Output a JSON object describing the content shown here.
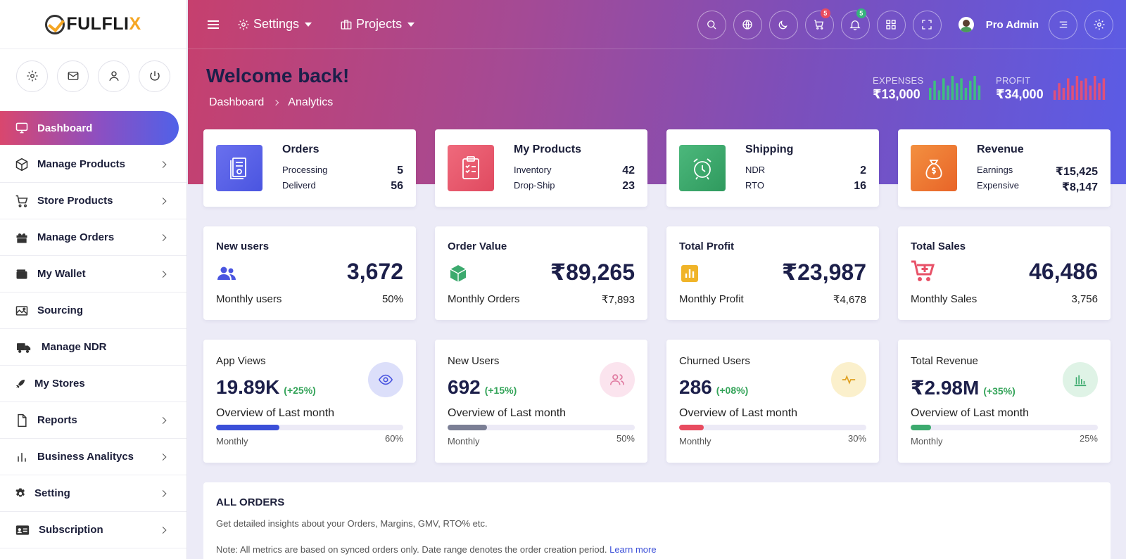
{
  "brand": {
    "name_a": "FULFLI",
    "name_b": "X"
  },
  "sidebar": {
    "quick": [
      "gear-icon",
      "mail-icon",
      "user-icon",
      "power-icon"
    ],
    "items": [
      {
        "label": "Dashboard",
        "icon": "monitor-icon",
        "active": true,
        "chevron": false
      },
      {
        "label": "Manage Products",
        "icon": "box-icon",
        "chevron": true
      },
      {
        "label": "Store Products",
        "icon": "cart-icon",
        "chevron": true
      },
      {
        "label": "Manage Orders",
        "icon": "gift-icon",
        "chevron": true
      },
      {
        "label": "My Wallet",
        "icon": "wallet-icon",
        "chevron": true
      },
      {
        "label": "Sourcing",
        "icon": "image-icon",
        "chevron": false
      },
      {
        "label": "Manage NDR",
        "icon": "truck-icon",
        "chevron": false
      },
      {
        "label": "My Stores",
        "icon": "rocket-icon",
        "chevron": false
      },
      {
        "label": "Reports",
        "icon": "file-icon",
        "chevron": true
      },
      {
        "label": "Business Analitycs",
        "icon": "bar-chart-icon",
        "chevron": true
      },
      {
        "label": "Setting",
        "icon": "cog-icon",
        "chevron": true
      },
      {
        "label": "Subscription",
        "icon": "id-card-icon",
        "chevron": true
      }
    ]
  },
  "topbar": {
    "settings_label": "Settings",
    "projects_label": "Projects",
    "cart_badge": "5",
    "bell_badge": "5",
    "user_name": "Pro Admin"
  },
  "hero": {
    "welcome": "Welcome back!",
    "breadcrumb": [
      "Dashboard",
      "Analytics"
    ],
    "expenses": {
      "label": "EXPENSES",
      "value": "₹13,000",
      "color": "#3fbf7f",
      "bars": [
        5,
        8,
        4,
        9,
        6,
        10,
        7,
        9,
        5,
        8,
        10,
        6
      ]
    },
    "profit": {
      "label": "PROFIT",
      "value": "₹34,000",
      "color": "#e0507a",
      "bars": [
        4,
        7,
        5,
        9,
        6,
        10,
        8,
        9,
        6,
        10,
        7,
        9
      ]
    }
  },
  "summary_cards": [
    {
      "title": "Orders",
      "tile_color": "#5b63e8",
      "icon": "receipt-icon",
      "rows": [
        {
          "k": "Processing",
          "v": "5"
        },
        {
          "k": "Deliverd",
          "v": "56"
        }
      ]
    },
    {
      "title": "My Products",
      "tile_color": "#e85268",
      "icon": "clipboard-icon",
      "rows": [
        {
          "k": "Inventory",
          "v": "42"
        },
        {
          "k": "Drop-Ship",
          "v": "23"
        }
      ]
    },
    {
      "title": "Shipping",
      "tile_color": "#3caa6e",
      "icon": "alarm-clock-icon",
      "rows": [
        {
          "k": "NDR",
          "v": "2"
        },
        {
          "k": "RTO",
          "v": "16"
        }
      ]
    },
    {
      "title": "Revenue",
      "tile_color": "#ef7a32",
      "icon": "money-bag-icon",
      "rows": [
        {
          "k": "Earnings",
          "v": "₹15,425"
        },
        {
          "k": "Expensive",
          "v": "₹8,147"
        }
      ]
    }
  ],
  "metric_cards": [
    {
      "title": "New users",
      "value": "3,672",
      "foot_label": "Monthly users",
      "foot_value": "50%",
      "icon": "users-icon",
      "icon_color": "#4a55e0"
    },
    {
      "title": "Order Value",
      "value": "₹89,265",
      "foot_label": "Monthly Orders",
      "foot_value": "₹7,893",
      "icon": "cube-icon",
      "icon_color": "#3caa6e"
    },
    {
      "title": "Total Profit",
      "value": "₹23,987",
      "foot_label": "Monthly Profit",
      "foot_value": "₹4,678",
      "icon": "chart-square-icon",
      "icon_color": "#f0b429"
    },
    {
      "title": "Total Sales",
      "value": "46,486",
      "foot_label": "Monthly Sales",
      "foot_value": "3,756",
      "icon": "cart-plus-icon",
      "icon_color": "#e85268"
    }
  ],
  "overview_cards": [
    {
      "title": "App Views",
      "value": "19.89K",
      "delta": "(+25%)",
      "overview": "Overview of Last month",
      "period": "Monthly",
      "percent_label": "60%",
      "progress": 0.34,
      "bar_color": "#3b4fd8",
      "circle_bg": "#dcdffa",
      "icon": "eye-icon",
      "icon_color": "#4a55e0"
    },
    {
      "title": "New Users",
      "value": "692",
      "delta": "(+15%)",
      "overview": "Overview of Last month",
      "period": "Monthly",
      "percent_label": "50%",
      "progress": 0.21,
      "bar_color": "#7b7f95",
      "circle_bg": "#fbe4ee",
      "icon": "users-outline-icon",
      "icon_color": "#e07aa0"
    },
    {
      "title": "Churned Users",
      "value": "286",
      "delta": "(+08%)",
      "overview": "Overview of Last month",
      "period": "Monthly",
      "percent_label": "30%",
      "progress": 0.13,
      "bar_color": "#e84b5f",
      "circle_bg": "#fbf0cc",
      "icon": "pulse-icon",
      "icon_color": "#e0a020"
    },
    {
      "title": "Total Revenue",
      "value": "₹2.98M",
      "delta": "(+35%)",
      "overview": "Overview of Last month",
      "period": "Monthly",
      "percent_label": "25%",
      "progress": 0.11,
      "bar_color": "#3caa6e",
      "circle_bg": "#dff3e6",
      "icon": "bars-icon",
      "icon_color": "#3caa6e"
    }
  ],
  "all_orders": {
    "title": "ALL ORDERS",
    "subtitle": "Get detailed insights about your Orders, Margins, GMV, RTO% etc.",
    "note": "Note: All metrics are based on synced orders only. Date range denotes the order creation period.",
    "link": "Learn more"
  }
}
